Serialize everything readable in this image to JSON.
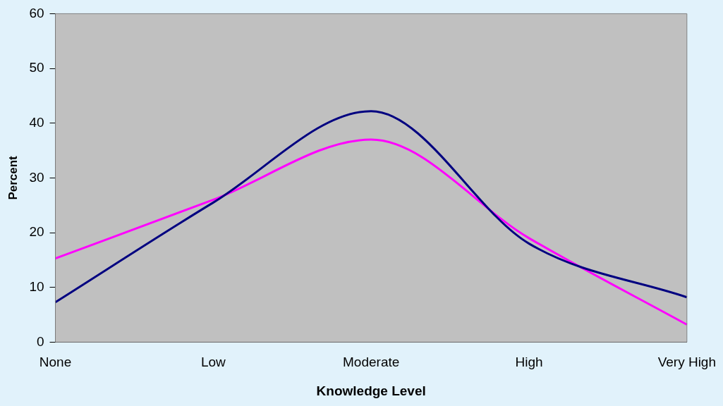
{
  "chart_data": {
    "type": "line",
    "xlabel": "Knowledge Level",
    "ylabel": "Percent",
    "categories": [
      "None",
      "Low",
      "Moderate",
      "High",
      "Very High"
    ],
    "series": [
      {
        "color": "#000080",
        "values": [
          7.3,
          25.5,
          42.2,
          18,
          8.2
        ]
      },
      {
        "color": "#ff00ff",
        "values": [
          15.3,
          26,
          37,
          19,
          3.2
        ]
      }
    ],
    "ylim": [
      0,
      60
    ],
    "yticks": [
      0,
      10,
      20,
      30,
      40,
      50,
      60
    ]
  }
}
